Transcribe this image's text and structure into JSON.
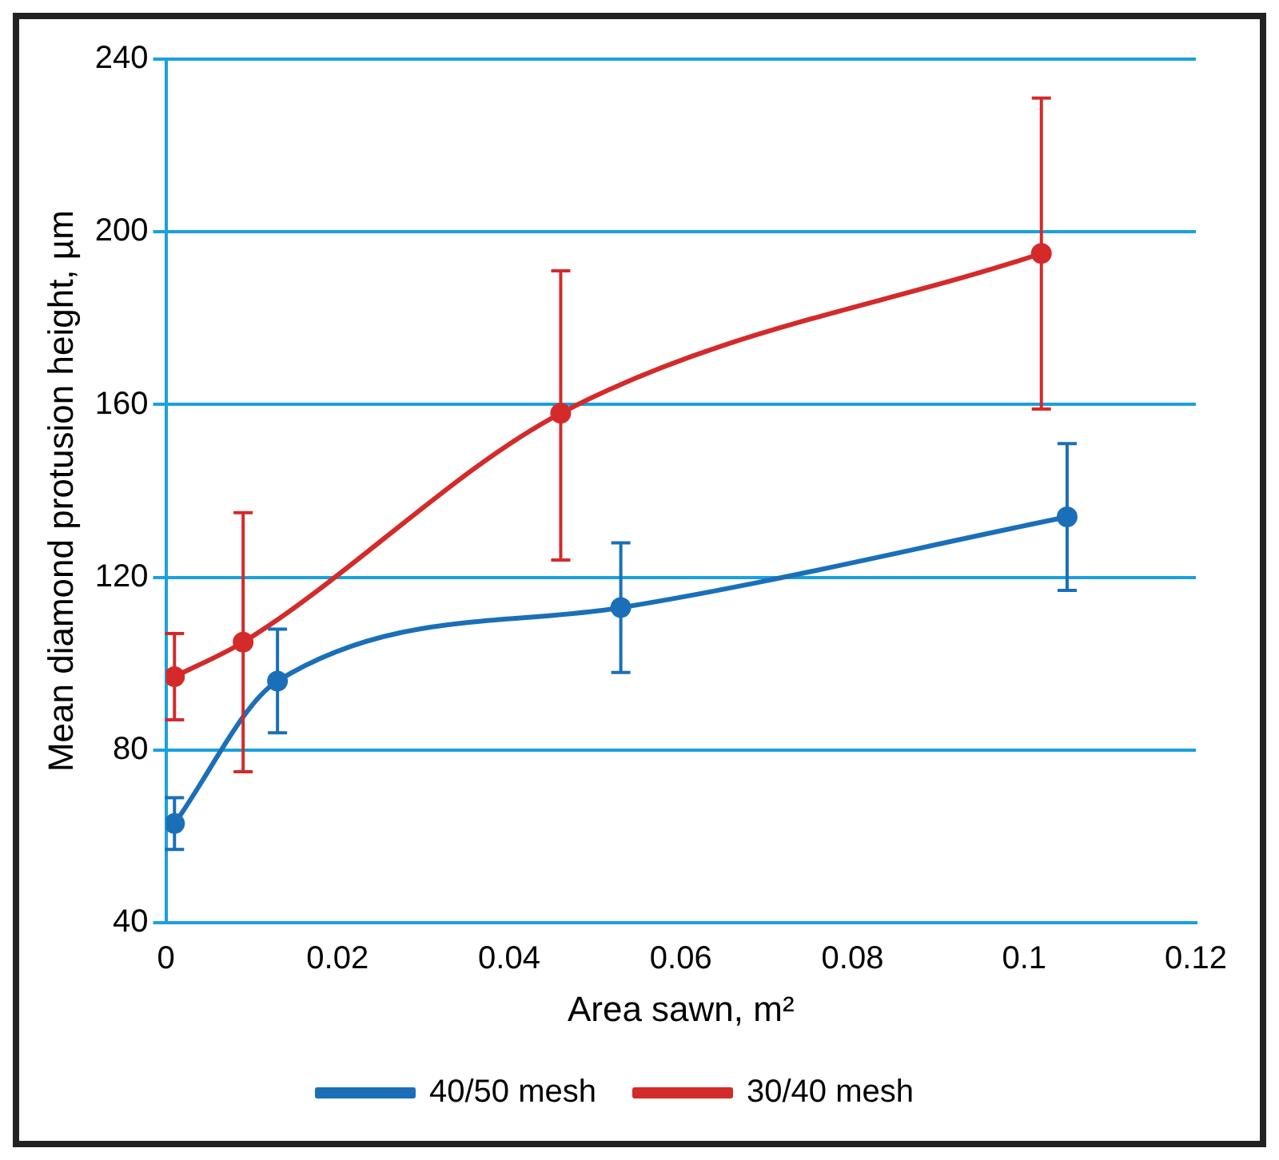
{
  "chart_data": {
    "type": "line",
    "xlabel": "Area sawn, m²",
    "ylabel": "Mean diamond protusion height, µm",
    "xlim": [
      0,
      0.12
    ],
    "xticks": [
      0,
      0.02,
      0.04,
      0.06,
      0.08,
      0.1,
      0.12
    ],
    "ylim": [
      40,
      240
    ],
    "yticks": [
      40,
      80,
      120,
      160,
      200,
      240
    ],
    "grid": "y",
    "legend": "bottom",
    "marker": "circle",
    "line_style": "solid",
    "series": [
      {
        "name": "40/50 mesh",
        "color": "#1a6fb8",
        "x": [
          0.001,
          0.013,
          0.053,
          0.105
        ],
        "values": [
          63,
          96,
          113,
          134
        ],
        "errors": [
          [
            57,
            69
          ],
          [
            84,
            108
          ],
          [
            98,
            128
          ],
          [
            117,
            151
          ]
        ]
      },
      {
        "name": "30/40 mesh",
        "color": "#d42a2a",
        "x": [
          0.001,
          0.009,
          0.046,
          0.102
        ],
        "values": [
          97,
          105,
          158,
          195
        ],
        "errors": [
          [
            87,
            107
          ],
          [
            75,
            135
          ],
          [
            124,
            191
          ],
          [
            159,
            231
          ]
        ]
      }
    ]
  }
}
